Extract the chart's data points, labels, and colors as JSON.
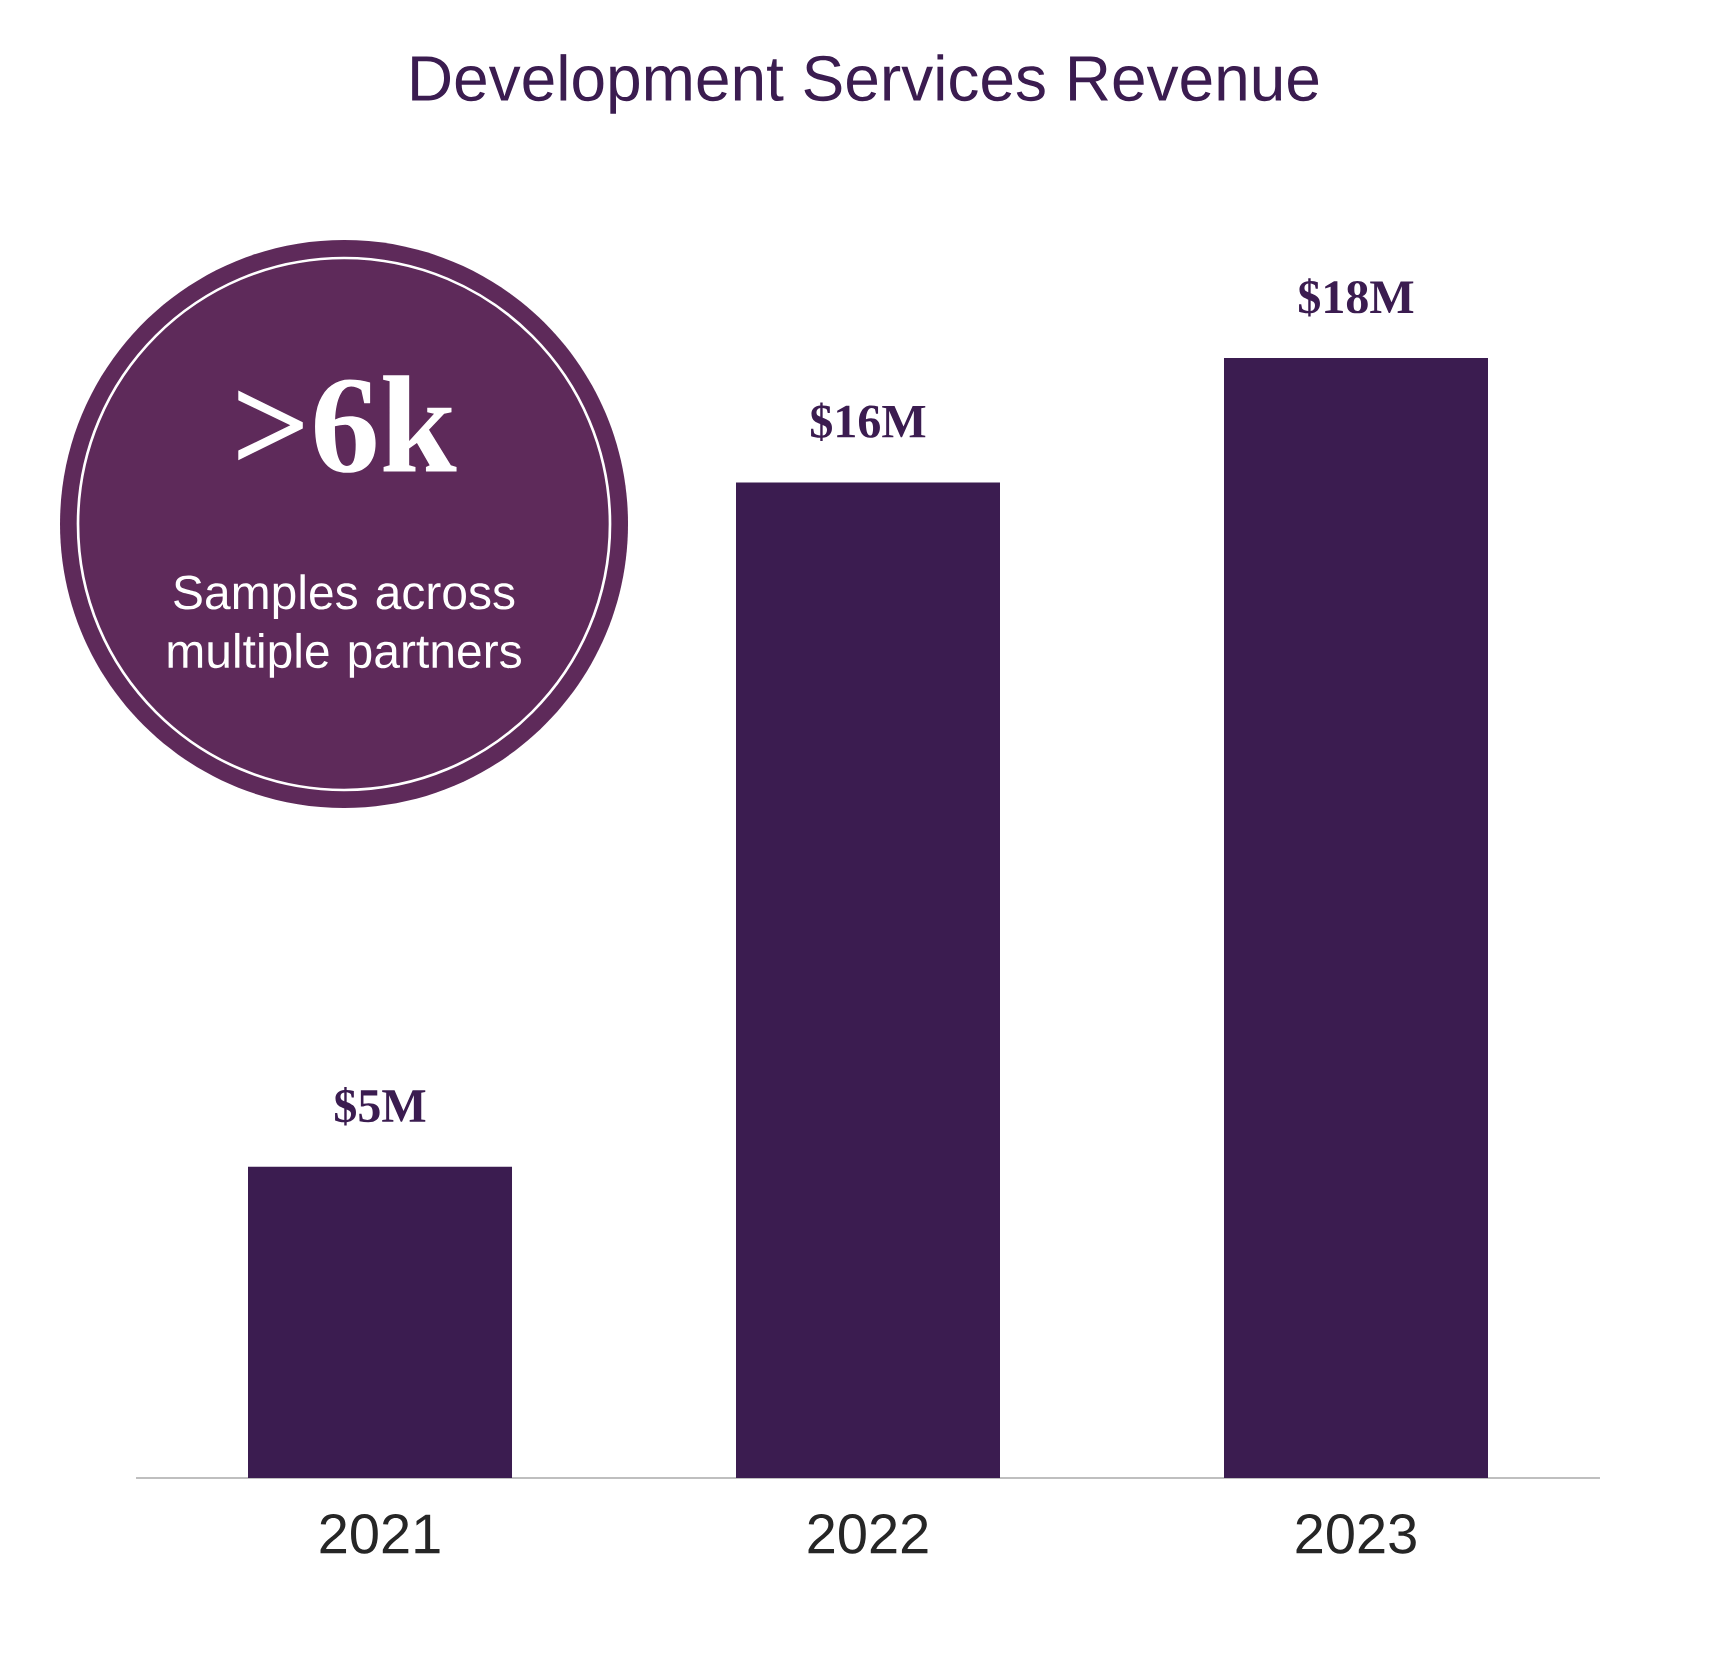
{
  "chart_data": {
    "type": "bar",
    "title": "Development Services Revenue",
    "categories": [
      "2021",
      "2022",
      "2023"
    ],
    "values": [
      5,
      16,
      18
    ],
    "value_labels": [
      "$5M",
      "$16M",
      "$18M"
    ],
    "color": "#3b1c50",
    "annotations": [
      ">6k",
      "Samples across multiple partners"
    ]
  }
}
